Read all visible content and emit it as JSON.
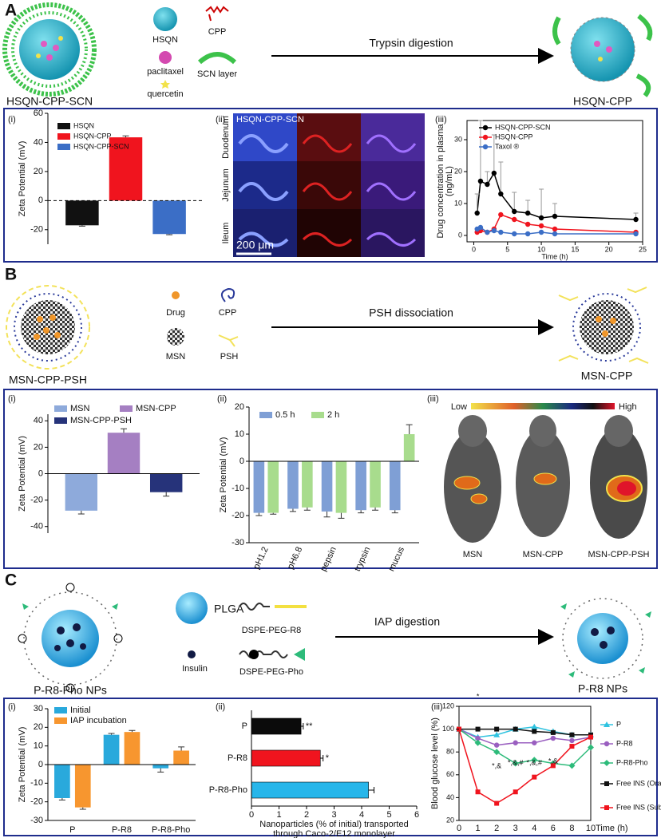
{
  "sections": [
    {
      "label": "A",
      "components": [
        "HSQN",
        "CPP",
        "paclitaxel",
        "SCN layer",
        "quercetin"
      ],
      "process": "Trypsin digestion",
      "before": "HSQN-CPP-SCN",
      "after": "HSQN-CPP",
      "panels": [
        "(i)",
        "(ii)",
        "(iii)"
      ],
      "image": {
        "title": "HSQN-CPP-SCN",
        "rows": [
          "Duodenum",
          "Jejunum",
          "Ileum"
        ],
        "scale_bar": "200 μm"
      }
    },
    {
      "label": "B",
      "components": [
        "Drug",
        "CPP",
        "MSN",
        "PSH"
      ],
      "process": "PSH dissociation",
      "before": "MSN-CPP-PSH",
      "after": "MSN-CPP",
      "panels": [
        "(i)",
        "(ii)",
        "(iii)"
      ],
      "image": {
        "scale_low": "Low",
        "scale_high": "High",
        "labels": [
          "MSN",
          "MSN-CPP",
          "MSN-CPP-PSH"
        ]
      }
    },
    {
      "label": "C",
      "components": [
        "PLGA",
        "DSPE-PEG-R8",
        "Insulin",
        "DSPE-PEG-Pho"
      ],
      "process": "IAP digestion",
      "before": "P-R8-Pho NPs",
      "after": "P-R8 NPs",
      "panels": [
        "(i)",
        "(ii)",
        "(iii)"
      ]
    }
  ],
  "chart_data": [
    {
      "type": "bar",
      "ylabel": "Zeta Potential (mV)",
      "categories": [
        null
      ],
      "series": [
        {
          "name": "HSQN",
          "color": "#111111",
          "values": [
            -17
          ],
          "errors": [
            0.6
          ]
        },
        {
          "name": "HSQN-CPP",
          "color": "#f0141e",
          "values": [
            43.5
          ],
          "errors": [
            1
          ]
        },
        {
          "name": "HSQN-CPP-SCN",
          "color": "#3b6ec6",
          "values": [
            -23
          ],
          "errors": [
            0.5
          ]
        }
      ],
      "ylim": [
        -30,
        60
      ],
      "yticks": [
        -20,
        0,
        20,
        40,
        60
      ],
      "zero_line": "dashed"
    },
    {
      "type": "line",
      "ylabel": [
        "Drug concentration in plasma",
        "(ng/mL)"
      ],
      "xlabel": "Time (h)",
      "x": [
        0.5,
        1,
        2,
        3,
        4,
        6,
        8,
        10,
        12,
        24
      ],
      "series": [
        {
          "name": "HSQN-CPP-SCN",
          "color": "#000000",
          "marker": "circle",
          "values": [
            7,
            17,
            16,
            19.5,
            13,
            7.5,
            7,
            5.5,
            6,
            5
          ],
          "errors": [
            6,
            19,
            4,
            12,
            10,
            6,
            4,
            9,
            4,
            2
          ]
        },
        {
          "name": "HSQN-CPP",
          "color": "#f0141e",
          "marker": "circle",
          "values": [
            1,
            1.5,
            1,
            2,
            6.5,
            5,
            3.5,
            3,
            2,
            1
          ]
        },
        {
          "name": "Taxol ®",
          "color": "#3b6ec6",
          "marker": "circle",
          "values": [
            2,
            2.5,
            1,
            1.5,
            1,
            0.5,
            0.5,
            1,
            0.5,
            0.5
          ]
        }
      ],
      "xlim": [
        -1,
        25
      ],
      "xticks": [
        0,
        5,
        10,
        15,
        20,
        25
      ],
      "ylim": [
        -2,
        36
      ],
      "yticks": [
        0,
        10,
        20,
        30
      ]
    },
    {
      "type": "bar",
      "ylabel": "Zeta Potential (mV)",
      "categories": [
        null
      ],
      "series": [
        {
          "name": "MSN",
          "color": "#8eaadb",
          "values": [
            -28
          ],
          "errors": [
            2.5
          ]
        },
        {
          "name": "MSN-CPP",
          "color": "#a57fc2",
          "values": [
            31
          ],
          "errors": [
            3
          ]
        },
        {
          "name": "MSN-CPP-PSH",
          "color": "#26337a",
          "values": [
            -14
          ],
          "errors": [
            3
          ]
        }
      ],
      "ylim": [
        -45,
        45
      ],
      "yticks": [
        -40,
        -20,
        0,
        20,
        40
      ],
      "zero_line": "solid"
    },
    {
      "type": "bar",
      "ylabel": "Zeta Potential (mV)",
      "categories": [
        "pH1.2",
        "pH6.8",
        "pepsin",
        "trypsin",
        "mucus"
      ],
      "series": [
        {
          "name": "0.5 h",
          "color": "#7f9fd5",
          "values": [
            -19,
            -17.5,
            -18.5,
            -18,
            -18
          ],
          "errors": [
            1,
            1,
            2,
            1,
            1
          ]
        },
        {
          "name": "2 h",
          "color": "#a8dc8d",
          "values": [
            -19,
            -17,
            -19,
            -17,
            10
          ],
          "errors": [
            0.5,
            1,
            2,
            1,
            3.5
          ]
        }
      ],
      "ylim": [
        -30,
        20
      ],
      "yticks": [
        -30,
        -20,
        -10,
        0,
        10,
        20
      ],
      "zero_line": "solid"
    },
    {
      "type": "bar",
      "ylabel": "Zeta Potential (mV)",
      "categories": [
        "P",
        "P-R8",
        "P-R8-Pho"
      ],
      "series": [
        {
          "name": "Initial",
          "color": "#29a9dc",
          "values": [
            -18,
            16,
            -2
          ],
          "errors": [
            1,
            0.7,
            2
          ]
        },
        {
          "name": "IAP incubation",
          "color": "#f7962f",
          "values": [
            -23,
            17.5,
            7.5
          ],
          "errors": [
            1,
            0.8,
            2
          ]
        }
      ],
      "ylim": [
        -30,
        30
      ],
      "yticks": [
        -30,
        -20,
        -10,
        0,
        10,
        20,
        30
      ],
      "zero_line": "solid"
    },
    {
      "type": "barh",
      "categories": [
        "P",
        "P-R8",
        "P-R8-Pho"
      ],
      "values": [
        1.8,
        2.5,
        4.25
      ],
      "errors": [
        0.08,
        0.1,
        0.2
      ],
      "colors": [
        "#0b0b0b",
        "#f0141e",
        "#27b6ea"
      ],
      "annotations": [
        "**",
        "*"
      ],
      "xlabel": [
        "Nanoparticles (% of initial) transported",
        "through Caco-2/E12 monolayer"
      ],
      "xlim": [
        0,
        6
      ],
      "xticks": [
        0,
        1,
        2,
        3,
        4,
        5,
        6
      ]
    },
    {
      "type": "line",
      "ylabel": "Blood glucose level (%)",
      "xlabel": "Time (h)",
      "categories": [
        "0",
        "1",
        "2",
        "3",
        "4",
        "6",
        "8",
        "10"
      ],
      "series": [
        {
          "name": "P",
          "color": "#2fc3e0",
          "marker": "triangle",
          "values": [
            100,
            93,
            95,
            100,
            102,
            98,
            95,
            95
          ]
        },
        {
          "name": "P-R8",
          "color": "#9a5fc0",
          "marker": "circle",
          "values": [
            100,
            92,
            86,
            88,
            88,
            92,
            90,
            93
          ]
        },
        {
          "name": "P-R8-Pho",
          "color": "#2dbb7a",
          "marker": "diamond",
          "values": [
            100,
            88,
            80,
            70,
            73,
            70,
            68,
            84
          ]
        },
        {
          "name": "Free INS (Oral)",
          "color": "#111111",
          "marker": "square",
          "values": [
            100,
            100,
            100,
            100,
            98,
            97,
            95,
            95
          ]
        },
        {
          "name": "Free INS (SubQ)",
          "color": "#f0141e",
          "marker": "square",
          "values": [
            100,
            45,
            35,
            45,
            58,
            68,
            85,
            93
          ]
        }
      ],
      "annotations": [
        "*",
        "*,&",
        "*,&,#",
        "*,&,#",
        "*,&"
      ],
      "ylim": [
        20,
        120
      ],
      "yticks": [
        20,
        40,
        60,
        80,
        100,
        120
      ]
    }
  ]
}
